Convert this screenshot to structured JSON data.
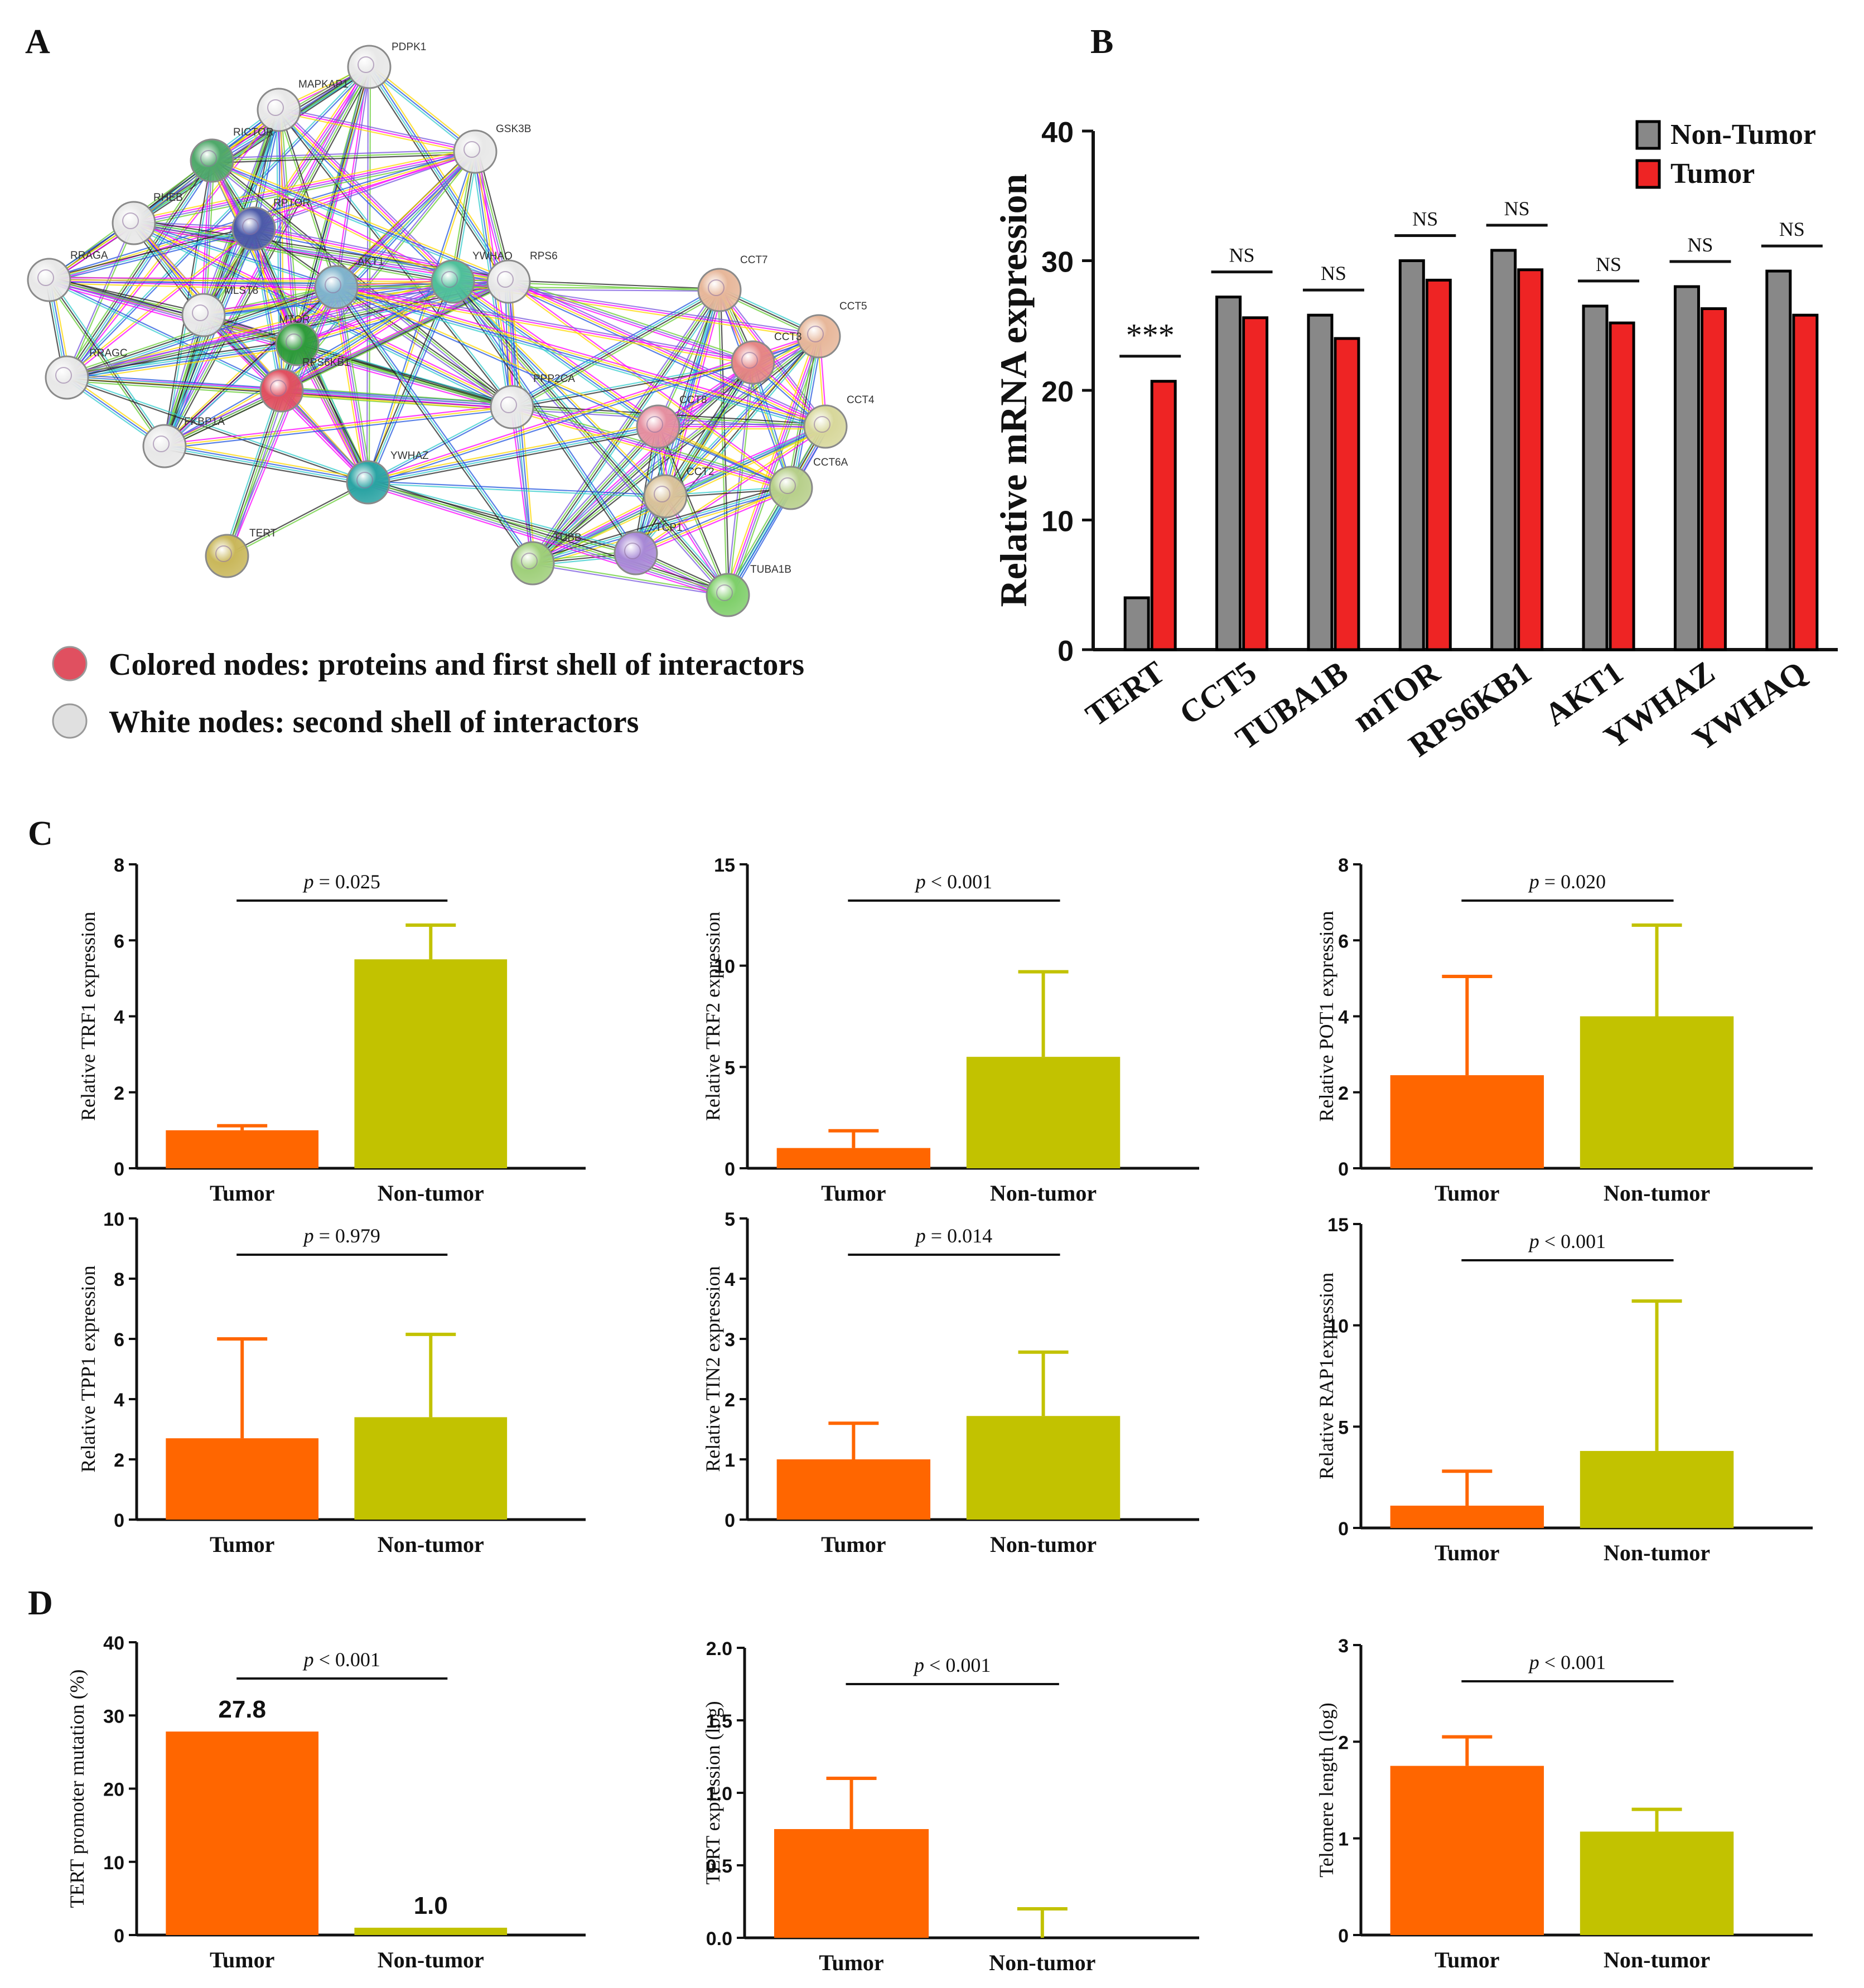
{
  "panels": {
    "A": {
      "label": "A",
      "network": {
        "nodes": [
          {
            "id": "PDPK1",
            "color": "#e8e8e8"
          },
          {
            "id": "MAPKAP1",
            "color": "#e8e8e8"
          },
          {
            "id": "GSK3B",
            "color": "#e8e8e8"
          },
          {
            "id": "RICTOR",
            "color": "#4fa86a"
          },
          {
            "id": "RHEB",
            "color": "#e8e8e8"
          },
          {
            "id": "RPTOR",
            "color": "#4c5aa8"
          },
          {
            "id": "RRAGA",
            "color": "#e8e8e8"
          },
          {
            "id": "MLST8",
            "color": "#e8e8e8"
          },
          {
            "id": "AKT1",
            "color": "#7fb3cc"
          },
          {
            "id": "MTOR",
            "color": "#2e9b3a"
          },
          {
            "id": "YWHAQ",
            "color": "#4fbf9a"
          },
          {
            "id": "RPS6",
            "color": "#e8e8e8"
          },
          {
            "id": "RRAGC",
            "color": "#e8e8e8"
          },
          {
            "id": "RPS6KB1",
            "color": "#e05060"
          },
          {
            "id": "FKBP1A",
            "color": "#e8e8e8"
          },
          {
            "id": "PPP2CA",
            "color": "#e8e8e8"
          },
          {
            "id": "YWHAZ",
            "color": "#2aa3a3"
          },
          {
            "id": "TERT",
            "color": "#c9b75a"
          },
          {
            "id": "CCT7",
            "color": "#e7b79a"
          },
          {
            "id": "CCT5",
            "color": "#e7b79a"
          },
          {
            "id": "CCT3",
            "color": "#e58585"
          },
          {
            "id": "CCT8",
            "color": "#e58fa0"
          },
          {
            "id": "CCT4",
            "color": "#d7d79a"
          },
          {
            "id": "CCT2",
            "color": "#d9c29a"
          },
          {
            "id": "CCT6A",
            "color": "#b7cf8a"
          },
          {
            "id": "TCP1",
            "color": "#a889d6"
          },
          {
            "id": "TUBB",
            "color": "#9fcf7a"
          },
          {
            "id": "TUBA1B",
            "color": "#7fcf6a"
          }
        ]
      },
      "legend": [
        {
          "text": "Colored nodes: proteins and first shell of interactors",
          "color": "#e05060"
        },
        {
          "text": "White nodes: second shell of interactors",
          "color": "#e0e0e0"
        }
      ]
    },
    "B": {
      "label": "B"
    },
    "C": {
      "label": "C"
    },
    "D": {
      "label": "D"
    }
  },
  "colors": {
    "non_tumor_B": "#888888",
    "tumor_B": "#ee2424",
    "tumor": "#ff6600",
    "non_tumor": "#c2c200"
  },
  "chart_data": [
    {
      "id": "B",
      "type": "bar",
      "categories": [
        "TERT",
        "CCT5",
        "TUBA1B",
        "mTOR",
        "RPS6KB1",
        "AKT1",
        "YWHAZ",
        "YWHAQ"
      ],
      "series": [
        {
          "name": "Non-Tumor",
          "values": [
            4,
            27.2,
            25.8,
            30,
            30.8,
            26.5,
            28,
            29.2
          ]
        },
        {
          "name": "Tumor",
          "values": [
            20.7,
            25.6,
            24,
            28.5,
            29.3,
            25.2,
            26.3,
            25.8
          ]
        }
      ],
      "significance": [
        "***",
        "NS",
        "NS",
        "NS",
        "NS",
        "NS",
        "NS",
        "NS"
      ],
      "title": "",
      "xlabel": "",
      "ylabel": "Relative mRNA expression",
      "ylim": [
        0,
        40
      ],
      "yticks": [
        "0",
        "10",
        "20",
        "30",
        "40"
      ]
    },
    {
      "id": "C1",
      "type": "bar",
      "categories": [
        "Tumor",
        "Non-tumor"
      ],
      "values": [
        1.0,
        5.5
      ],
      "errors_upper": [
        1.12,
        6.4
      ],
      "ylabel": "Relative TRF1 expression",
      "ylim": [
        0,
        8
      ],
      "yticks": [
        "0",
        "2",
        "4",
        "6",
        "8"
      ],
      "pvalue_label": "p",
      "pvalue_text": " = 0.025"
    },
    {
      "id": "C2",
      "type": "bar",
      "categories": [
        "Tumor",
        "Non-tumor"
      ],
      "values": [
        1.0,
        5.5
      ],
      "errors_upper": [
        1.85,
        9.7
      ],
      "ylabel": "Relative TRF2 expression",
      "ylim": [
        0,
        15
      ],
      "yticks": [
        "0",
        "5",
        "10",
        "15"
      ],
      "pvalue_label": "p",
      "pvalue_text": " < 0.001"
    },
    {
      "id": "C3",
      "type": "bar",
      "categories": [
        "Tumor",
        "Non-tumor"
      ],
      "values": [
        2.45,
        4.0
      ],
      "errors_upper": [
        5.05,
        6.4
      ],
      "ylabel": "Relative POT1 expression",
      "ylim": [
        0,
        8
      ],
      "yticks": [
        "0",
        "2",
        "4",
        "6",
        "8"
      ],
      "pvalue_label": "p",
      "pvalue_text": " = 0.020"
    },
    {
      "id": "C4",
      "type": "bar",
      "categories": [
        "Tumor",
        "Non-tumor"
      ],
      "values": [
        2.7,
        3.4
      ],
      "errors_upper": [
        6.0,
        6.15
      ],
      "ylabel": "Relative TPP1 expression",
      "ylim": [
        0,
        10
      ],
      "yticks": [
        "0",
        "2",
        "4",
        "6",
        "8",
        "10"
      ],
      "pvalue_label": "p",
      "pvalue_text": " = 0.979"
    },
    {
      "id": "C5",
      "type": "bar",
      "categories": [
        "Tumor",
        "Non-tumor"
      ],
      "values": [
        1.0,
        1.72
      ],
      "errors_upper": [
        1.6,
        2.78
      ],
      "ylabel": "Relative TIN2 expression",
      "ylim": [
        0,
        5
      ],
      "yticks": [
        "0",
        "1",
        "2",
        "3",
        "4",
        "5"
      ],
      "pvalue_label": "p",
      "pvalue_text": " = 0.014"
    },
    {
      "id": "C6",
      "type": "bar",
      "categories": [
        "Tumor",
        "Non-tumor"
      ],
      "values": [
        1.1,
        3.8
      ],
      "errors_upper": [
        2.8,
        11.2
      ],
      "ylabel": "Relative RAP1expression",
      "ylim": [
        0,
        15
      ],
      "yticks": [
        "0",
        "5",
        "10",
        "15"
      ],
      "pvalue_label": "p",
      "pvalue_text": " < 0.001"
    },
    {
      "id": "D1",
      "type": "bar",
      "categories": [
        "Tumor",
        "Non-tumor"
      ],
      "values": [
        27.8,
        1.0
      ],
      "errors_upper": [
        null,
        null
      ],
      "data_labels": [
        "27.8",
        "1.0"
      ],
      "ylabel": "TERT promoter mutation (%)",
      "ylim": [
        0,
        40
      ],
      "yticks": [
        "0",
        "10",
        "20",
        "30",
        "40"
      ],
      "pvalue_label": "p",
      "pvalue_text": " < 0.001"
    },
    {
      "id": "D2",
      "type": "bar",
      "categories": [
        "Tumor",
        "Non-tumor"
      ],
      "values": [
        0.75,
        0.0
      ],
      "errors_upper": [
        1.1,
        0.2
      ],
      "ylabel": "TERT expression (log)",
      "ylim": [
        0,
        2
      ],
      "yticks": [
        "0.0",
        "0.5",
        "1.0",
        "1.5",
        "2.0"
      ],
      "pvalue_label": "p",
      "pvalue_text": " < 0.001"
    },
    {
      "id": "D3",
      "type": "bar",
      "categories": [
        "Tumor",
        "Non-tumor"
      ],
      "values": [
        1.75,
        1.07
      ],
      "errors_upper": [
        2.05,
        1.3
      ],
      "ylabel": "Telomere length (log)",
      "ylim": [
        0,
        3
      ],
      "yticks": [
        "0",
        "1",
        "2",
        "3"
      ],
      "pvalue_label": "p",
      "pvalue_text": " < 0.001"
    }
  ]
}
